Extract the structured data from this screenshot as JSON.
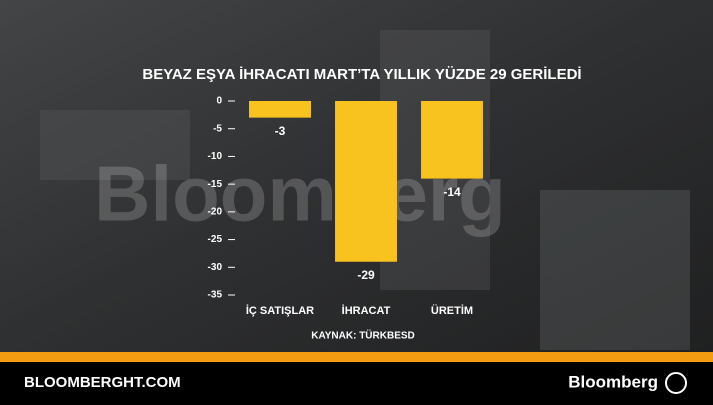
{
  "chart_data": {
    "type": "bar",
    "title": "BEYAZ EŞYA İHRACATI MART’TA YILLIK YÜZDE 29 GERİLEDİ",
    "subtitle": "KAYNAK: TÜRKBESD",
    "categories": [
      "İÇ SATIŞLAR",
      "İHRACAT",
      "ÜRETİM"
    ],
    "values": [
      -3,
      -29,
      -14
    ],
    "color": "#f9c31f",
    "ylim": [
      -35,
      0
    ],
    "yticks": [
      0,
      -5,
      -10,
      -15,
      -20,
      -25,
      -30,
      -35
    ],
    "grid": false
  },
  "watermark": "Bloomberg",
  "footer": {
    "site": "BLOOMBERGHT.COM",
    "brand": "Bloomberg"
  }
}
